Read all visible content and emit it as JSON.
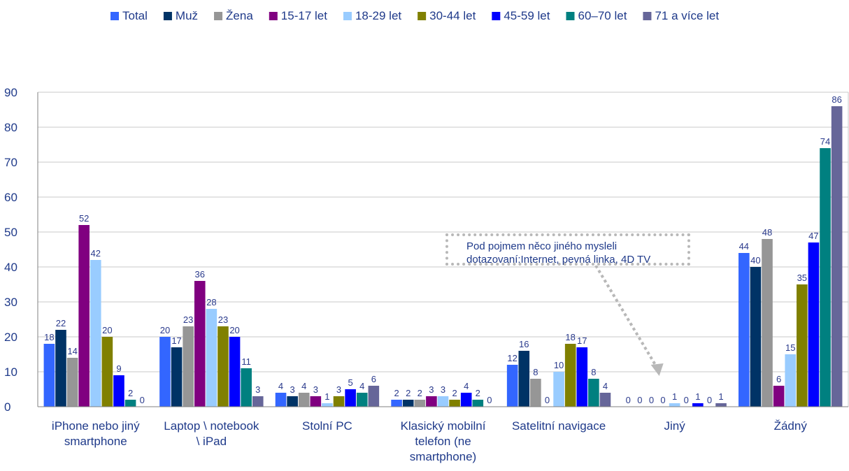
{
  "chart_data": {
    "type": "bar",
    "title": "",
    "xlabel": "",
    "ylabel": "",
    "ylim": [
      0,
      90
    ],
    "yticks": [
      0,
      10,
      20,
      30,
      40,
      50,
      60,
      70,
      80,
      90
    ],
    "grid": true,
    "legend_position": "top",
    "categories": [
      [
        "iPhone nebo jiný",
        "smartphone"
      ],
      [
        "Laptop \\ notebook",
        "\\ iPad"
      ],
      [
        "Stolní PC"
      ],
      [
        "Klasický mobilní",
        "telefon (ne",
        "smartphone)"
      ],
      [
        "Satelitní navigace"
      ],
      [
        "Jiný"
      ],
      [
        "Žádný"
      ]
    ],
    "series": [
      {
        "name": "Total",
        "color": "#3366ff",
        "values": [
          18,
          20,
          4,
          2,
          12,
          0,
          44
        ],
        "labels": [
          "18",
          "20",
          "4",
          "2",
          "12",
          "0",
          "44"
        ]
      },
      {
        "name": "Muž",
        "color": "#003366",
        "values": [
          22,
          17,
          3,
          2,
          16,
          0,
          40
        ],
        "labels": [
          "22",
          "17",
          "3",
          "2",
          "16",
          "0",
          "40"
        ]
      },
      {
        "name": "Žena",
        "color": "#969696",
        "values": [
          14,
          23,
          4,
          2,
          8,
          0,
          48
        ],
        "labels": [
          "14",
          "23",
          "4",
          "2",
          "8",
          "0",
          "48"
        ]
      },
      {
        "name": "15-17 let",
        "color": "#800080",
        "values": [
          52,
          36,
          3,
          3,
          0,
          0,
          6
        ],
        "labels": [
          "52",
          "36",
          "3",
          "3",
          "0",
          "0",
          "6"
        ]
      },
      {
        "name": "18-29 let",
        "color": "#99ccff",
        "values": [
          42,
          28,
          1,
          3,
          10,
          1,
          15
        ],
        "labels": [
          "42",
          "28",
          "1",
          "3",
          "10",
          "1",
          "15"
        ]
      },
      {
        "name": "30-44 let",
        "color": "#808000",
        "values": [
          20,
          23,
          3,
          2,
          18,
          0,
          35
        ],
        "labels": [
          "20",
          "23",
          "3",
          "2",
          "18",
          "0",
          "35"
        ]
      },
      {
        "name": "45-59 let",
        "color": "#0000ff",
        "values": [
          9,
          20,
          5,
          4,
          17,
          1,
          47
        ],
        "labels": [
          "9",
          "20",
          "5",
          "4",
          "17",
          "1",
          "47"
        ]
      },
      {
        "name": "60–70 let",
        "color": "#008080",
        "values": [
          2,
          11,
          4,
          2,
          8,
          0,
          74
        ],
        "labels": [
          "2",
          "11",
          "4",
          "2",
          "8",
          "0",
          "74"
        ]
      },
      {
        "name": "71 a více let",
        "color": "#666699",
        "values": [
          0,
          3,
          6,
          0,
          4,
          1,
          86
        ],
        "labels": [
          "0",
          "3",
          "6",
          "0",
          "4",
          "1",
          "86"
        ]
      }
    ],
    "annotation": {
      "lines": [
        "Pod pojmem něco jiného mysleli",
        "dotazovaní:Internet, pevná linka, 4D TV"
      ],
      "points_to": "Jiný"
    },
    "axis_color": "#808080",
    "grid_color": "#c8c8c8",
    "text_color": "#1f3a8a"
  }
}
